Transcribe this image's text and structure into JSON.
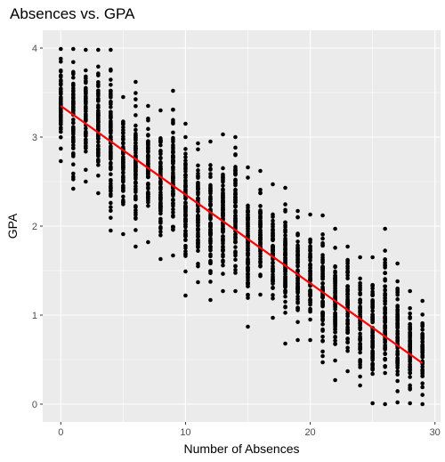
{
  "chart_data": {
    "type": "scatter",
    "title": "Absences vs. GPA",
    "xlabel": "Number of Absences",
    "ylabel": "GPA",
    "xlim": [
      -1.45,
      30.45
    ],
    "ylim": [
      -0.2,
      4.2
    ],
    "x_ticks": [
      0,
      10,
      20,
      30
    ],
    "x_tick_labels": [
      "0",
      "10",
      "20",
      "30"
    ],
    "y_ticks": [
      0,
      1,
      2,
      3,
      4
    ],
    "y_tick_labels": [
      "0",
      "1",
      "2",
      "3",
      "4"
    ],
    "grid": true,
    "colors": {
      "panel": "#ebebeb",
      "grid": "#ffffff",
      "points": "#000000",
      "trend": "#ff0000",
      "tick_text": "#4d4d4d",
      "tick_mark": "#333333"
    },
    "trend_line": {
      "type": "linear",
      "x": [
        0,
        29
      ],
      "y": [
        3.35,
        0.46
      ]
    },
    "point_columns": [
      {
        "x": 0,
        "y_min": 2.73,
        "y_max": 3.99
      },
      {
        "x": 1,
        "y_min": 2.42,
        "y_max": 3.99
      },
      {
        "x": 2,
        "y_min": 2.5,
        "y_max": 3.98
      },
      {
        "x": 3,
        "y_min": 2.37,
        "y_max": 3.98
      },
      {
        "x": 4,
        "y_min": 1.95,
        "y_max": 3.98
      },
      {
        "x": 5,
        "y_min": 1.91,
        "y_max": 3.45
      },
      {
        "x": 6,
        "y_min": 1.77,
        "y_max": 3.62
      },
      {
        "x": 7,
        "y_min": 1.82,
        "y_max": 3.35
      },
      {
        "x": 8,
        "y_min": 1.63,
        "y_max": 3.3
      },
      {
        "x": 9,
        "y_min": 1.67,
        "y_max": 3.52
      },
      {
        "x": 10,
        "y_min": 1.22,
        "y_max": 3.15
      },
      {
        "x": 11,
        "y_min": 1.37,
        "y_max": 2.93
      },
      {
        "x": 12,
        "y_min": 1.17,
        "y_max": 2.95
      },
      {
        "x": 13,
        "y_min": 1.27,
        "y_max": 3.03
      },
      {
        "x": 14,
        "y_min": 1.27,
        "y_max": 3.0
      },
      {
        "x": 15,
        "y_min": 0.87,
        "y_max": 2.66
      },
      {
        "x": 16,
        "y_min": 1.23,
        "y_max": 2.62
      },
      {
        "x": 17,
        "y_min": 0.97,
        "y_max": 2.47
      },
      {
        "x": 18,
        "y_min": 0.68,
        "y_max": 2.43
      },
      {
        "x": 19,
        "y_min": 0.72,
        "y_max": 2.17
      },
      {
        "x": 20,
        "y_min": 0.72,
        "y_max": 2.13
      },
      {
        "x": 21,
        "y_min": 0.47,
        "y_max": 2.12
      },
      {
        "x": 22,
        "y_min": 0.27,
        "y_max": 1.97
      },
      {
        "x": 23,
        "y_min": 0.37,
        "y_max": 1.77
      },
      {
        "x": 24,
        "y_min": 0.21,
        "y_max": 1.65
      },
      {
        "x": 25,
        "y_min": 0.01,
        "y_max": 1.65
      },
      {
        "x": 26,
        "y_min": 0.0,
        "y_max": 1.97
      },
      {
        "x": 27,
        "y_min": 0.02,
        "y_max": 1.58
      },
      {
        "x": 28,
        "y_min": 0.01,
        "y_max": 1.27
      },
      {
        "x": 29,
        "y_min": 0.0,
        "y_max": 1.16
      }
    ]
  }
}
